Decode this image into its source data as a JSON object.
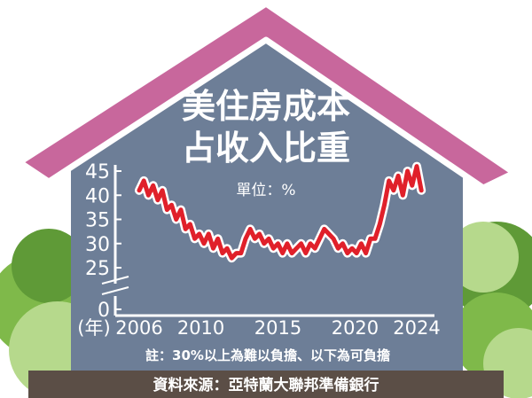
{
  "chart_data": {
    "type": "line",
    "title_line1": "美住房成本",
    "title_line2": "占收入比重",
    "unit_label": "單位：%",
    "year_marker": "(年)",
    "x_tick_labels": [
      "2006",
      "2010",
      "2015",
      "2020",
      "2024"
    ],
    "y_tick_labels": [
      "0",
      "25",
      "30",
      "35",
      "40",
      "45"
    ],
    "ylim": [
      0,
      45
    ],
    "axis_break": true,
    "note": "註：30%以上為難以負擔、以下為可負擔",
    "source": "資料來源：亞特蘭大聯邦準備銀行",
    "line_color": "#e0202a",
    "series": [
      {
        "x": [
          2006.0,
          2006.3,
          2006.6,
          2006.9,
          2007.2,
          2007.5,
          2007.8,
          2008.1,
          2008.4,
          2008.7,
          2009.0,
          2009.3,
          2009.6,
          2009.9,
          2010.2,
          2010.5,
          2010.8,
          2011.1,
          2011.4,
          2011.7,
          2012.0,
          2012.3,
          2012.6,
          2012.9,
          2013.2,
          2013.5,
          2013.8,
          2014.1,
          2014.4,
          2014.7,
          2015.0,
          2015.3,
          2015.6,
          2015.9,
          2016.2,
          2016.5,
          2016.8,
          2017.1,
          2017.4,
          2017.7,
          2018.0,
          2018.3,
          2018.6,
          2018.9,
          2019.2,
          2019.5,
          2019.8,
          2020.1,
          2020.4,
          2020.7,
          2021.0,
          2021.3,
          2021.6,
          2021.9,
          2022.2,
          2022.5,
          2022.8,
          2023.1,
          2023.4,
          2023.7,
          2024.0,
          2024.3
        ],
        "y": [
          41,
          43,
          40,
          42,
          39,
          41,
          37,
          38,
          35,
          37,
          33,
          34,
          31,
          32,
          30,
          32,
          29,
          31,
          28,
          29,
          27,
          28,
          28,
          31,
          33,
          31,
          32,
          30,
          31,
          29,
          30,
          28,
          30,
          28,
          29,
          30,
          28,
          30,
          29,
          31,
          33,
          32,
          31,
          29,
          30,
          28,
          29,
          28,
          30,
          28,
          31,
          31,
          34,
          38,
          43,
          41,
          44,
          40,
          45,
          42,
          46,
          41
        ]
      }
    ]
  }
}
